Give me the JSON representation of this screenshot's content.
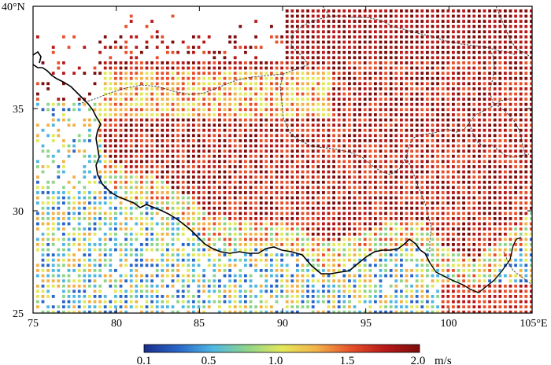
{
  "map": {
    "lon_range": [
      75,
      105
    ],
    "lat_range": [
      25,
      40
    ],
    "x_ticks": [
      "75",
      "80",
      "85",
      "90",
      "95",
      "100",
      "105°E"
    ],
    "y_ticks": [
      "25",
      "30",
      "35",
      "40°N"
    ],
    "variable_unit": "m/s"
  },
  "colorbar": {
    "labels": [
      "0.1",
      "0.5",
      "1.0",
      "1.5",
      "2.0"
    ],
    "unit": "m/s",
    "colors": [
      "#1a2e8c",
      "#2a66c8",
      "#4fb7e2",
      "#8fd48a",
      "#e3e85a",
      "#f2b24a",
      "#e6502a",
      "#b71818",
      "#7d0d0d"
    ]
  },
  "colors": {
    "frame": "#000000",
    "boundary": "#000000",
    "internal_boundary": "#333333"
  }
}
